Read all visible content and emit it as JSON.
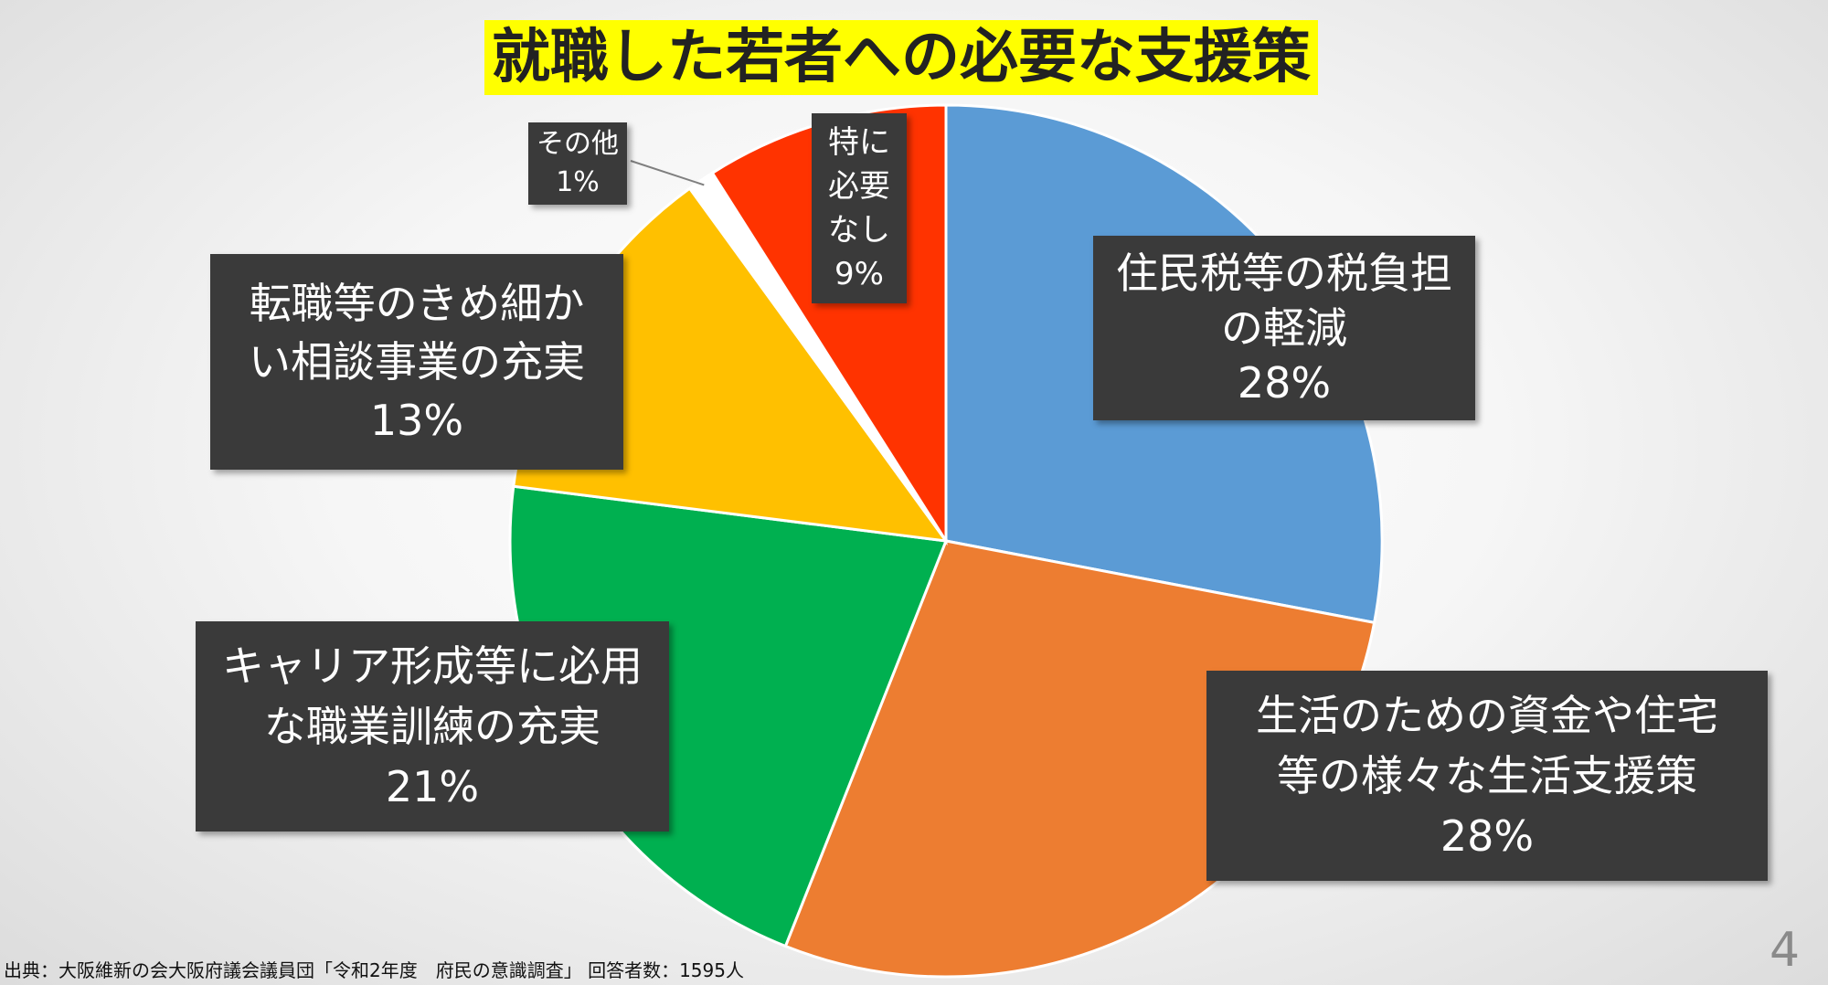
{
  "slide": {
    "title": "就職した若者への必要な支援策",
    "source": "出典：大阪維新の会大阪府議会議員団「令和2年度　府民の意識調査」 回答者数：1595人",
    "page_number": "4"
  },
  "chart_data": {
    "type": "pie",
    "title": "就職した若者への必要な支援策",
    "slices": [
      {
        "label": "住民税等の税負担\nの軽減",
        "value": 28,
        "value_label": "28%",
        "color": "#5b9bd5"
      },
      {
        "label": "生活のための資金や住宅\n等の様々な生活支援策",
        "value": 28,
        "value_label": "28%",
        "color": "#ed7d31"
      },
      {
        "label": "キャリア形成等に必用\nな職業訓練の充実",
        "value": 21,
        "value_label": "21%",
        "color": "#00b050"
      },
      {
        "label": "転職等のきめ細か\nい相談事業の充実",
        "value": 13,
        "value_label": "13%",
        "color": "#ffc000"
      },
      {
        "label": "その他",
        "value": 1,
        "value_label": "1%",
        "color": "#ffffff"
      },
      {
        "label": "特に\n必要\nなし",
        "value": 9,
        "value_label": "9%",
        "color": "#ff3300"
      }
    ],
    "start_angle_deg": 0,
    "direction": "clockwise",
    "legend": "none"
  }
}
